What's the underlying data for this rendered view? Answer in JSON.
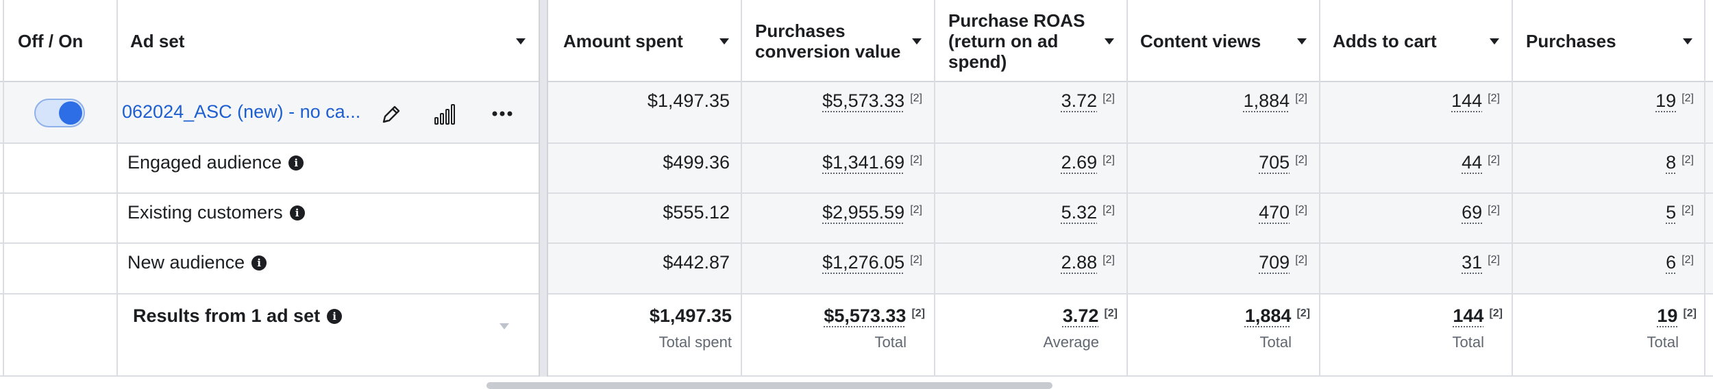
{
  "header": {
    "off_on": "Off / On",
    "ad_set": "Ad set",
    "amount_spent": "Amount spent",
    "pcv_line1": "Purchases",
    "pcv_line2": "conversion value",
    "roas_line1": "Purchase ROAS",
    "roas_line2": "(return on ad",
    "roas_line3": "spend)",
    "content_views": "Content views",
    "adds_to_cart": "Adds to cart",
    "purchases": "Purchases"
  },
  "footnote_marker": "[2]",
  "adset": {
    "name": "062024_ASC (new) - no ca...",
    "toggle_on": true,
    "amount_spent": "$1,497.35",
    "pcv": "$5,573.33",
    "roas": "3.72",
    "content_views": "1,884",
    "adds_to_cart": "144",
    "purchases": "19"
  },
  "audiences": [
    {
      "name": "Engaged audience",
      "amount_spent": "$499.36",
      "pcv": "$1,341.69",
      "roas": "2.69",
      "content_views": "705",
      "adds_to_cart": "44",
      "purchases": "8"
    },
    {
      "name": "Existing customers",
      "amount_spent": "$555.12",
      "pcv": "$2,955.59",
      "roas": "5.32",
      "content_views": "470",
      "adds_to_cart": "69",
      "purchases": "5"
    },
    {
      "name": "New audience",
      "amount_spent": "$442.87",
      "pcv": "$1,276.05",
      "roas": "2.88",
      "content_views": "709",
      "adds_to_cart": "31",
      "purchases": "6"
    }
  ],
  "totals": {
    "label": "Results from 1 ad set",
    "amount_spent": "$1,497.35",
    "amount_spent_sub": "Total spent",
    "pcv": "$5,573.33",
    "pcv_sub": "Total",
    "roas": "3.72",
    "roas_sub": "Average",
    "content_views": "1,884",
    "content_views_sub": "Total",
    "adds_to_cart": "144",
    "adds_to_cart_sub": "Total",
    "purchases": "19",
    "purchases_sub": "Total"
  },
  "icons": {
    "info": "info-icon",
    "edit": "pencil-icon",
    "chart": "bar-chart-icon",
    "more": "more-icon"
  },
  "colors": {
    "link": "#1d5fd1",
    "toggle": "#2d6ee6",
    "grid": "#dadde1"
  }
}
